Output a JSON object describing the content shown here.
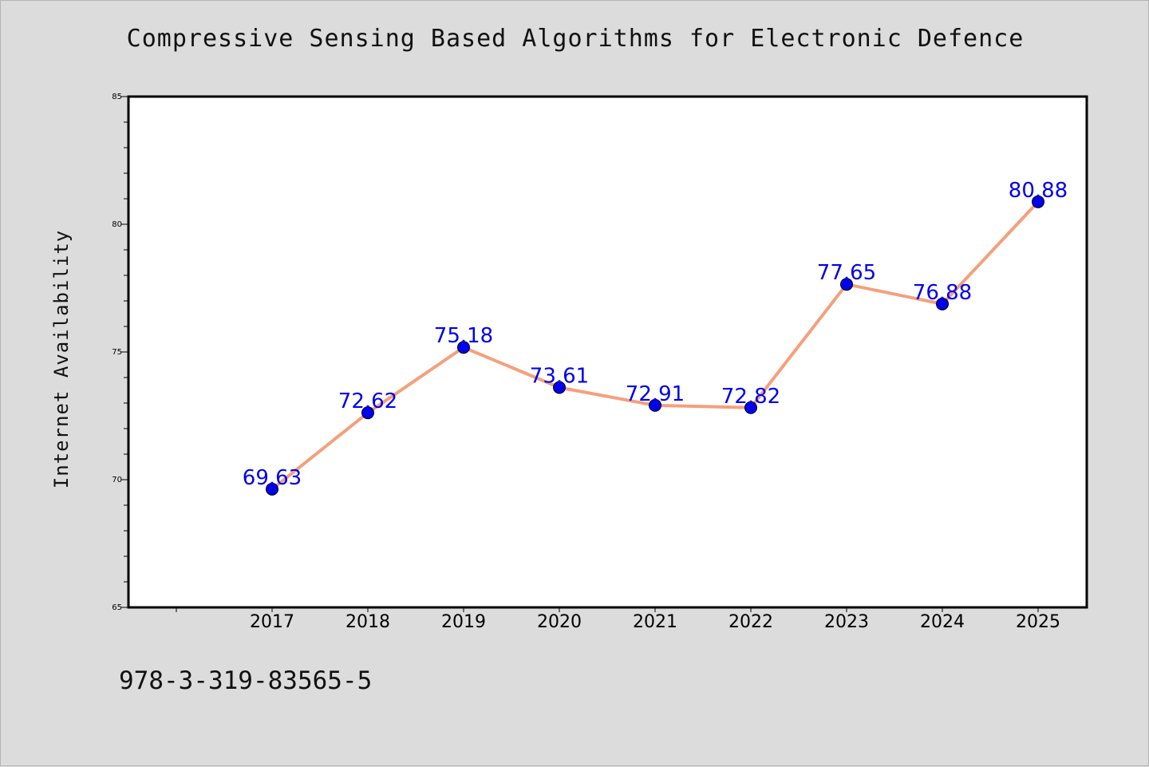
{
  "chart_data": {
    "type": "line",
    "title": "Compressive Sensing Based Algorithms for Electronic Defence",
    "xlabel": "",
    "ylabel": "Internet Availability",
    "categories": [
      "2017",
      "2018",
      "2019",
      "2020",
      "2021",
      "2022",
      "2023",
      "2024",
      "2025"
    ],
    "series": [
      {
        "values": [
          69.63,
          72.62,
          75.18,
          73.61,
          72.91,
          72.82,
          77.65,
          76.88,
          80.88
        ]
      }
    ],
    "data_labels": [
      "69.63",
      "72.62",
      "75.18",
      "73.61",
      "72.91",
      "72.82",
      "77.65",
      "76.88",
      "80.88"
    ],
    "ylim": [
      65,
      85
    ],
    "yticks": [
      "65",
      "70",
      "75",
      "80",
      "85"
    ],
    "grid": false,
    "line_color": "#f4a07c",
    "marker_color": "#0000ee",
    "label_color": "#0000ee"
  },
  "footer": {
    "text": "978-3-319-83565-5"
  }
}
